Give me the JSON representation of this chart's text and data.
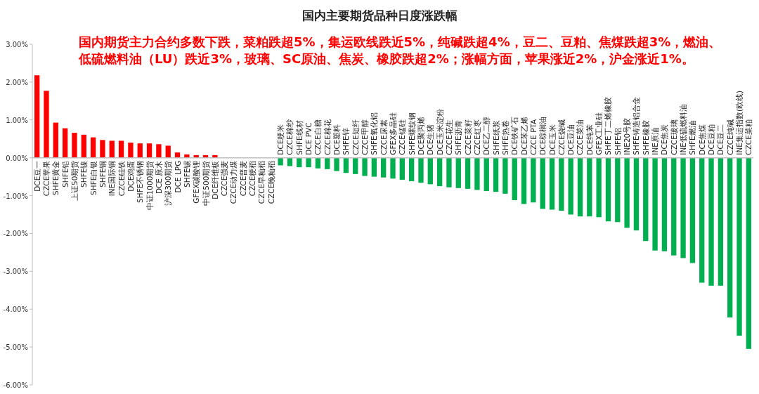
{
  "chart_data": {
    "type": "bar",
    "title": "国内主要期货品种日度涨跌幅",
    "subtitle": "国内期货主力合约多数下跌，菜粕跌超5%，集运欧线跌近5%，纯碱跌超4%，豆二、豆粕、焦煤跌超3%，燃油、低硫燃料油（LU）跌近3%，玻璃、SC原油、焦炭、橡胶跌超2%；涨幅方面，苹果涨近2%，沪金涨近1%。",
    "categories": [
      "DCE豆一",
      "CZCE苹果",
      "SHFE黄金",
      "SHFE铅",
      "上证50期货",
      "SHFE镍",
      "SHFE白银",
      "SHFE铜",
      "INE国际铜",
      "CZCE硅铁",
      "DCE鸡蛋",
      "SHFE不锈钢",
      "中证1000期货",
      "DCE 原木",
      "沪深300期货",
      "DCE LPG",
      "SHFE锡",
      "GFEX碳酸锂",
      "中证500期货",
      "DCE纤维板",
      "CZCE强麦",
      "CZCE动力煤",
      "CZCE普麦",
      "CZCE粳稻",
      "CZCE早籼稻",
      "CZCE晚籼稻",
      "DCE粳米",
      "CZCE棉纱",
      "SHFE线材",
      "DCE PVC",
      "CZCE白糖",
      "CZCE棉花",
      "DCE塑料",
      "SHFE锌",
      "CZCE短纤",
      "CZCE甲醇",
      "SHFE氧化铝",
      "CZCE尿素",
      "GFEX多晶硅",
      "CZCE锰硅",
      "SHFE螺纹钢",
      "DCE聚丙烯",
      "DCE生猪",
      "DCE玉米淀粉",
      "CZCE花生",
      "SHFE沥青",
      "CZCE菜籽",
      "CZCE红枣",
      "DCE乙二醇",
      "SHFE纸浆",
      "SHFE热卷",
      "DCE铁矿石",
      "DCE苯乙烯",
      "CZCE PTA",
      "DCE棕榈油",
      "DCE玉米",
      "CZCE烧碱",
      "DCE豆油",
      "CZCE菜油",
      "DCE纯苯",
      "GFEX工业硅",
      "SHFE丁二烯橡胶",
      "SHFE铝",
      "INE20号胶",
      "SHFE铸造铝合金",
      "SHFE橡胶",
      "INE原油",
      "DCE焦炭",
      "CZCE玻璃",
      "INE低硫燃料油",
      "SHFE燃油",
      "DCE焦煤",
      "DCE豆粕",
      "DCE豆二",
      "CZCE纯碱",
      "INE集运指数(欧线)",
      "CZCE菜粕"
    ],
    "values": [
      2.18,
      1.77,
      0.93,
      0.78,
      0.66,
      0.61,
      0.54,
      0.47,
      0.45,
      0.45,
      0.4,
      0.38,
      0.38,
      0.36,
      0.32,
      0.14,
      0.09,
      0.07,
      0.07,
      0.07,
      0,
      0,
      0,
      0,
      0,
      0,
      -0.2,
      -0.22,
      -0.25,
      -0.25,
      -0.28,
      -0.3,
      -0.35,
      -0.4,
      -0.43,
      -0.48,
      -0.5,
      -0.52,
      -0.55,
      -0.58,
      -0.62,
      -0.66,
      -0.7,
      -0.75,
      -0.78,
      -0.8,
      -0.82,
      -0.85,
      -0.88,
      -0.9,
      -0.95,
      -1.12,
      -1.22,
      -1.18,
      -1.35,
      -1.37,
      -1.4,
      -1.5,
      -1.55,
      -1.55,
      -1.57,
      -1.68,
      -1.7,
      -1.85,
      -1.92,
      -2.2,
      -2.45,
      -2.47,
      -2.58,
      -2.65,
      -2.78,
      -3.3,
      -3.38,
      -3.38,
      -4.22,
      -4.7,
      -5.05
    ],
    "colors": [
      "#ff0000",
      "#ff0000",
      "#ff0000",
      "#ff0000",
      "#ff0000",
      "#ff0000",
      "#ff0000",
      "#ff0000",
      "#ff0000",
      "#ff0000",
      "#ff0000",
      "#ff0000",
      "#ff0000",
      "#ff0000",
      "#ff0000",
      "#ff0000",
      "#ff0000",
      "#ff0000",
      "#ff0000",
      "#ff0000",
      "#00b050",
      "#00b050",
      "#00b050",
      "#00b050",
      "#00b050",
      "#00b050",
      "#00b050",
      "#00b050",
      "#00b050",
      "#00b050",
      "#00b050",
      "#00b050",
      "#00b050",
      "#00b050",
      "#00b050",
      "#00b050",
      "#00b050",
      "#00b050",
      "#00b050",
      "#00b050",
      "#00b050",
      "#00b050",
      "#00b050",
      "#00b050",
      "#00b050",
      "#00b050",
      "#00b050",
      "#00b050",
      "#00b050",
      "#00b050",
      "#00b050",
      "#00b050",
      "#00b050",
      "#00b050",
      "#00b050",
      "#00b050",
      "#00b050",
      "#00b050",
      "#00b050",
      "#00b050",
      "#00b050",
      "#00b050",
      "#00b050",
      "#00b050",
      "#00b050",
      "#00b050",
      "#00b050",
      "#00b050",
      "#00b050",
      "#00b050",
      "#00b050",
      "#00b050",
      "#00b050",
      "#00b050",
      "#00b050",
      "#00b050",
      "#00b050"
    ],
    "ylim": [
      -6,
      3
    ],
    "yticks": [
      {
        "value": 3,
        "label": "3.00%"
      },
      {
        "value": 2,
        "label": "2.00%"
      },
      {
        "value": 1,
        "label": "1.00%"
      },
      {
        "value": 0,
        "label": "0.00%"
      },
      {
        "value": -1,
        "label": "-1.00%"
      },
      {
        "value": -2,
        "label": "-2.00%"
      },
      {
        "value": -3,
        "label": "-3.00%"
      },
      {
        "value": -4,
        "label": "-4.00%"
      },
      {
        "value": -5,
        "label": "-5.00%"
      },
      {
        "value": -6,
        "label": "-6.00%"
      }
    ],
    "grid": false
  }
}
